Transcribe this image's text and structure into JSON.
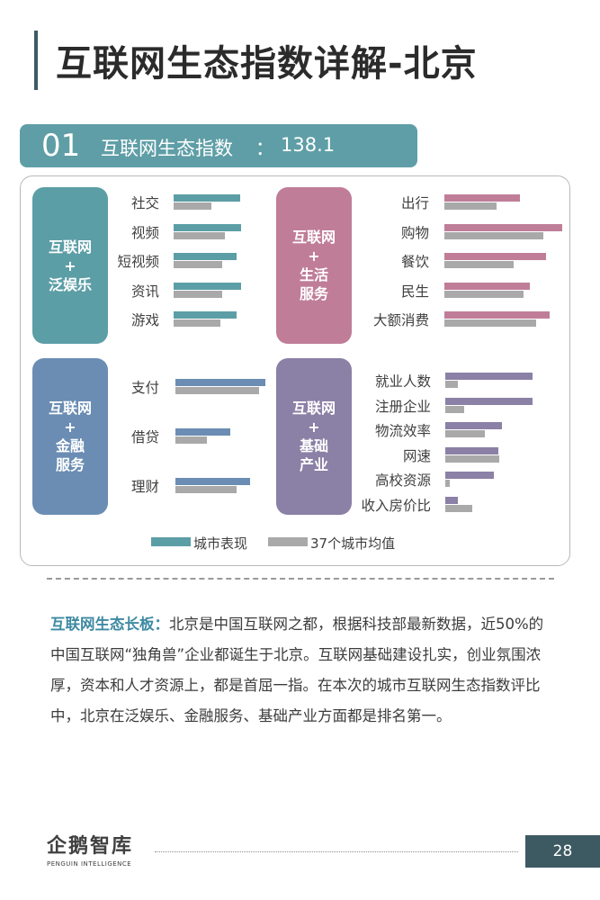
{
  "title": "互联网生态指数详解-北京",
  "index": {
    "number": "01",
    "label": "互联网生态指数",
    "colon": "：",
    "value": "138.1"
  },
  "colors": {
    "city": "#5c9ea6",
    "avg": "#a9a9a9",
    "teal": "#5c9ea6",
    "pink": "#c07d98",
    "blue": "#6b8db3",
    "purple": "#8b80a5"
  },
  "chart_data": [
    {
      "type": "bar",
      "group": "互联网+泛娱乐",
      "categories": [
        "社交",
        "视频",
        "短视频",
        "资讯",
        "游戏"
      ],
      "series": [
        {
          "name": "城市表现",
          "values": [
            1.45,
            1.48,
            1.38,
            1.48,
            1.38
          ]
        },
        {
          "name": "37个城市均值",
          "values": [
            0.82,
            1.12,
            1.05,
            1.05,
            1.02
          ]
        }
      ]
    },
    {
      "type": "bar",
      "group": "互联网+生活服务",
      "categories": [
        "出行",
        "购物",
        "餐饮",
        "民生",
        "大额消费"
      ],
      "series": [
        {
          "name": "城市表现",
          "values": [
            1.15,
            1.8,
            1.55,
            1.3,
            1.6
          ]
        },
        {
          "name": "37个城市均值",
          "values": [
            0.8,
            1.5,
            1.05,
            1.2,
            1.4
          ]
        }
      ]
    },
    {
      "type": "bar",
      "group": "互联网+金融服务",
      "categories": [
        "支付",
        "借贷",
        "理财"
      ],
      "series": [
        {
          "name": "城市表现",
          "values": [
            2.05,
            1.25,
            1.7
          ]
        },
        {
          "name": "37个城市均值",
          "values": [
            1.9,
            0.72,
            1.38
          ]
        }
      ]
    },
    {
      "type": "bar",
      "group": "互联网+基础产业",
      "categories": [
        "就业人数",
        "注册企业",
        "物流效率",
        "网速",
        "高校资源",
        "收入房价比"
      ],
      "series": [
        {
          "name": "城市表现",
          "values": [
            1.98,
            1.98,
            1.28,
            1.2,
            1.1,
            0.28
          ]
        },
        {
          "name": "37个城市均值",
          "values": [
            0.28,
            0.42,
            0.9,
            1.22,
            0.1,
            0.62
          ]
        }
      ]
    }
  ],
  "cards": [
    {
      "lines": [
        "互联网",
        "+",
        "泛娱乐"
      ]
    },
    {
      "lines": [
        "互联网",
        "+",
        "生活",
        "服务"
      ]
    },
    {
      "lines": [
        "互联网",
        "+",
        "金融",
        "服务"
      ]
    },
    {
      "lines": [
        "互联网",
        "+",
        "基础",
        "产业"
      ]
    }
  ],
  "legend": {
    "city": "城市表现",
    "avg": "37个城市均值"
  },
  "paragraph": {
    "lead": "互联网生态长板：",
    "text": "北京是中国互联网之都，根据科技部最新数据，近50%的中国互联网“独角兽”企业都诞生于北京。互联网基础建设扎实，创业氛围浓厚，资本和人才资源上，都是首屈一指。在本次的城市互联网生态指数评比中，北京在泛娱乐、金融服务、基础产业方面都是排名第一。"
  },
  "footer": {
    "logo": "企鹅智库",
    "logo_sub": "PENGUIN INTELLIGENCE",
    "page": "28"
  }
}
